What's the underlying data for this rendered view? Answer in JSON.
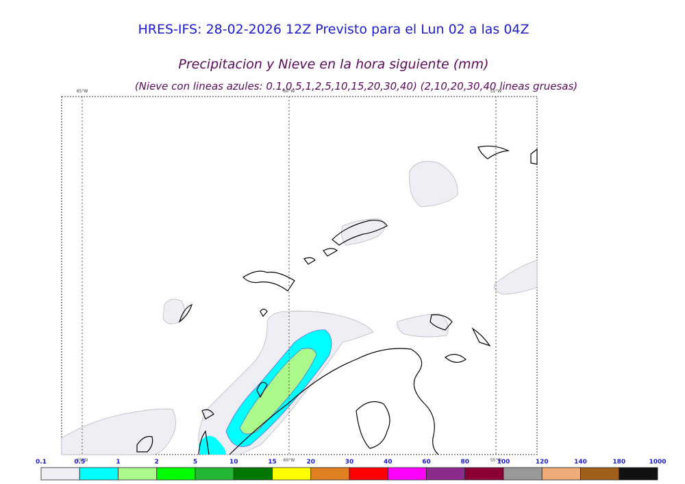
{
  "header": {
    "title": "HRES-IFS: 28-02-2026 12Z Previsto para el Lun 02 a las 04Z",
    "subtitle": "Precipitacion y Nieve en la hora siguiente (mm)",
    "note": "(Nieve con lineas azules: 0.1,0.5,1,2,5,10,15,20,30,40)  (2,10,20,30,40 lineas gruesas)"
  },
  "meridians": [
    "65°W",
    "60°W",
    "55°W"
  ],
  "colorbar": {
    "ticks": [
      "0.1",
      "0.5",
      "1",
      "2",
      "5",
      "10",
      "15",
      "20",
      "30",
      "40",
      "60",
      "80",
      "100",
      "120",
      "140",
      "180",
      "1000"
    ],
    "colors": [
      "#eeeff4",
      "#00ffff",
      "#aaf98a",
      "#00fd00",
      "#22b734",
      "#007700",
      "#ffff00",
      "#e08020",
      "#ff0000",
      "#ff00ff",
      "#8b2b8b",
      "#8b0033",
      "#999999",
      "#eeaa77",
      "#a0601b",
      "#111111"
    ]
  }
}
